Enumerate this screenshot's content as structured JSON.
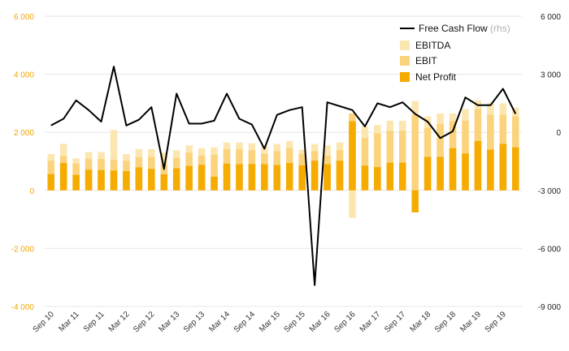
{
  "chart_data": {
    "type": "bar+line",
    "title": "",
    "colors": {
      "ebitda": "#fce6b0",
      "ebit": "#fbd37c",
      "net_profit": "#f5ab00",
      "fcf": "#000000",
      "left_axis": "#f0a500",
      "grid": "#e6e6e6"
    },
    "left_axis": {
      "min": -4000,
      "max": 6000,
      "ticks": [
        -4000,
        -2000,
        0,
        2000,
        4000,
        6000
      ],
      "labels": [
        "-4 000",
        "-2 000",
        "0",
        "2 000",
        "4 000",
        "6 000"
      ]
    },
    "right_axis": {
      "min": -9000,
      "max": 6000,
      "ticks": [
        -9000,
        -6000,
        -3000,
        0,
        3000,
        6000
      ],
      "labels": [
        "-9 000",
        "-6 000",
        "-3 000",
        "0",
        "3 000",
        "6 000"
      ]
    },
    "x_tick_labels": [
      "Sep 10",
      "Mar 11",
      "Sep 11",
      "Mar 12",
      "Sep 12",
      "Mar 13",
      "Sep 13",
      "Mar 14",
      "Sep 14",
      "Mar 15",
      "Sep 15",
      "Mar 16",
      "Sep 16",
      "Mar 17",
      "Sep 17",
      "Mar 18",
      "Sep 18",
      "Mar 19",
      "Sep 19"
    ],
    "x_tick_every": 2,
    "legend": {
      "fcf_name": "Free Cash Flow",
      "fcf_unit": "(rhs)",
      "ebitda": "EBITDA",
      "ebit": "EBIT",
      "net_profit": "Net Profit"
    },
    "series": {
      "ebitda": [
        1250,
        1600,
        1100,
        1320,
        1320,
        2080,
        1250,
        1420,
        1420,
        1300,
        1380,
        1550,
        1450,
        1480,
        1650,
        1650,
        1620,
        1520,
        1600,
        1700,
        1400,
        1600,
        1550,
        1650,
        2650,
        2200,
        2250,
        2400,
        2400,
        3080,
        2550,
        2650,
        2650,
        2800,
        3100,
        3000,
        3000,
        2850
      ],
      "ebit": [
        1020,
        1180,
        920,
        1080,
        1080,
        1050,
        1020,
        1150,
        1150,
        880,
        1120,
        1300,
        1200,
        1220,
        1420,
        1420,
        1380,
        1260,
        1350,
        1450,
        1250,
        1350,
        1200,
        1380,
        2650,
        1800,
        1960,
        2050,
        2050,
        2600,
        2150,
        2300,
        2380,
        2400,
        2800,
        2600,
        2600,
        2550
      ],
      "net_profit": [
        560,
        940,
        530,
        710,
        700,
        680,
        660,
        790,
        740,
        550,
        760,
        840,
        880,
        470,
        920,
        900,
        910,
        900,
        870,
        940,
        860,
        1020,
        900,
        1020,
        2380,
        850,
        800,
        950,
        950,
        -760,
        1150,
        1150,
        1450,
        1270,
        1700,
        1400,
        1600,
        1480
      ],
      "ebitda_neg": [
        0,
        0,
        0,
        0,
        0,
        0,
        0,
        0,
        0,
        0,
        0,
        0,
        0,
        0,
        0,
        0,
        0,
        0,
        0,
        0,
        0,
        0,
        0,
        0,
        -950,
        0,
        0,
        0,
        0,
        0,
        0,
        0,
        0,
        0,
        0,
        0,
        0,
        0
      ],
      "fcf": [
        350,
        700,
        1650,
        1150,
        550,
        3400,
        350,
        650,
        1300,
        -1900,
        2000,
        450,
        450,
        600,
        2000,
        700,
        400,
        -850,
        900,
        1150,
        1300,
        -7900,
        1550,
        1350,
        1150,
        300,
        1500,
        1300,
        1550,
        950,
        550,
        -300,
        50,
        1800,
        1400,
        1400,
        2250,
        950
      ]
    }
  }
}
